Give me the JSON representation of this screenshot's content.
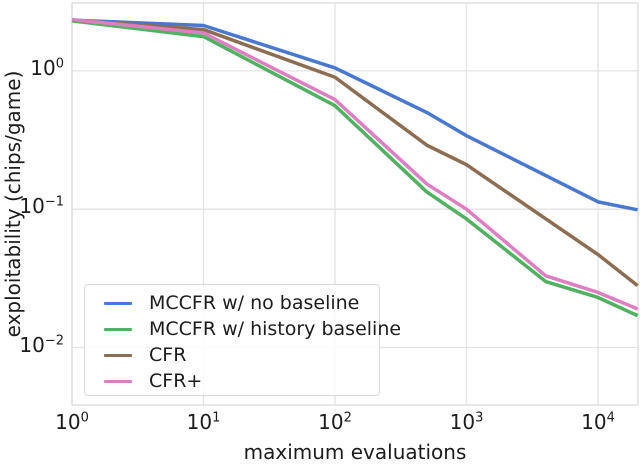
{
  "chart_data": {
    "type": "line",
    "title": "",
    "xlabel": "maximum evaluations",
    "ylabel": "exploitability (chips/game)",
    "xscale": "log",
    "yscale": "log",
    "xlim": [
      1,
      20000
    ],
    "ylim": [
      0.0038,
      3.1
    ],
    "grid": true,
    "grid_color": "#e3e3e3",
    "axes_edge_color": "#dcdcdc",
    "legend_position": "lower left",
    "xticks": [
      {
        "v": 1,
        "base": "10",
        "exp": "0"
      },
      {
        "v": 10,
        "base": "10",
        "exp": "1"
      },
      {
        "v": 100,
        "base": "10",
        "exp": "2"
      },
      {
        "v": 1000,
        "base": "10",
        "exp": "3"
      },
      {
        "v": 10000,
        "base": "10",
        "exp": "4"
      }
    ],
    "yticks": [
      {
        "v": 1,
        "base": "10",
        "exp": "0"
      },
      {
        "v": 0.1,
        "base": "10",
        "exp": "−1"
      },
      {
        "v": 0.01,
        "base": "10",
        "exp": "−2"
      }
    ],
    "series": [
      {
        "name": "MCCFR w/ no baseline",
        "color": "#4878cf",
        "x": [
          1,
          10,
          100,
          500,
          1000,
          10000,
          20000
        ],
        "y": [
          2.33,
          2.13,
          1.05,
          0.5,
          0.34,
          0.113,
          0.099
        ]
      },
      {
        "name": "MCCFR w/ history baseline",
        "color": "#4fb25f",
        "x": [
          1,
          10,
          100,
          500,
          1000,
          4000,
          10000,
          20000
        ],
        "y": [
          2.3,
          1.77,
          0.56,
          0.133,
          0.085,
          0.03,
          0.023,
          0.017
        ]
      },
      {
        "name": "CFR",
        "color": "#8c6d52",
        "x": [
          1,
          10,
          100,
          500,
          1000,
          10000,
          20000
        ],
        "y": [
          2.33,
          1.99,
          0.9,
          0.29,
          0.21,
          0.047,
          0.028
        ]
      },
      {
        "name": "CFR+",
        "color": "#dd7ec2",
        "x": [
          1,
          10,
          100,
          500,
          1000,
          4000,
          10000,
          20000
        ],
        "y": [
          2.35,
          1.88,
          0.62,
          0.152,
          0.1,
          0.033,
          0.025,
          0.019
        ]
      }
    ]
  },
  "axis": {
    "xlabel": "maximum evaluations",
    "ylabel": "exploitability (chips/game)"
  },
  "legend": {
    "items": [
      {
        "label": "MCCFR w/ no baseline",
        "color": "#4878cf"
      },
      {
        "label": "MCCFR w/ history baseline",
        "color": "#4fb25f"
      },
      {
        "label": "CFR",
        "color": "#8c6d52"
      },
      {
        "label": "CFR+",
        "color": "#dd7ec2"
      }
    ]
  }
}
